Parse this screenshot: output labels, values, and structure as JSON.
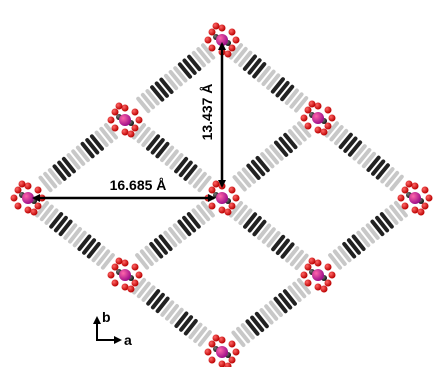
{
  "measurements": {
    "vertical": "13.437 Å",
    "horizontal": "16.685 Å"
  },
  "axes": {
    "b": "b",
    "a": "a"
  }
}
